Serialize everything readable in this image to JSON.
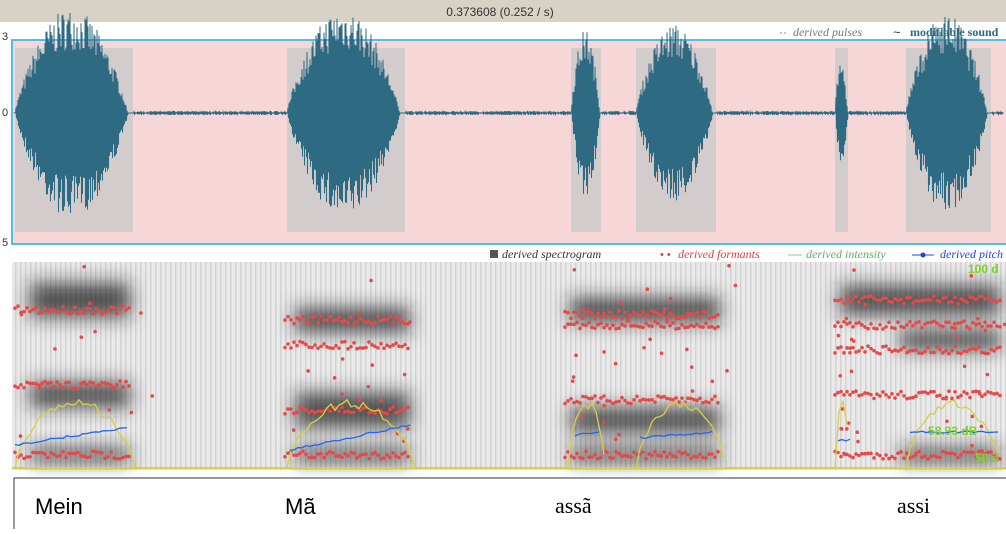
{
  "header": {
    "selection": "0.373608 (0.252 / s)"
  },
  "waveform": {
    "legend": [
      "derived pulses",
      "modifiable sound"
    ],
    "axis_labels": [
      "3",
      "0",
      "5"
    ]
  },
  "spectrogram": {
    "legend": [
      "derived spectrogram",
      "derived formants",
      "derived intensity",
      "derived pitch"
    ],
    "right_labels": [
      "100 d",
      "58.93 dB",
      "50 d"
    ]
  },
  "tier": {
    "words": [
      "Mein",
      "Mã",
      "assã",
      "assi"
    ]
  }
}
